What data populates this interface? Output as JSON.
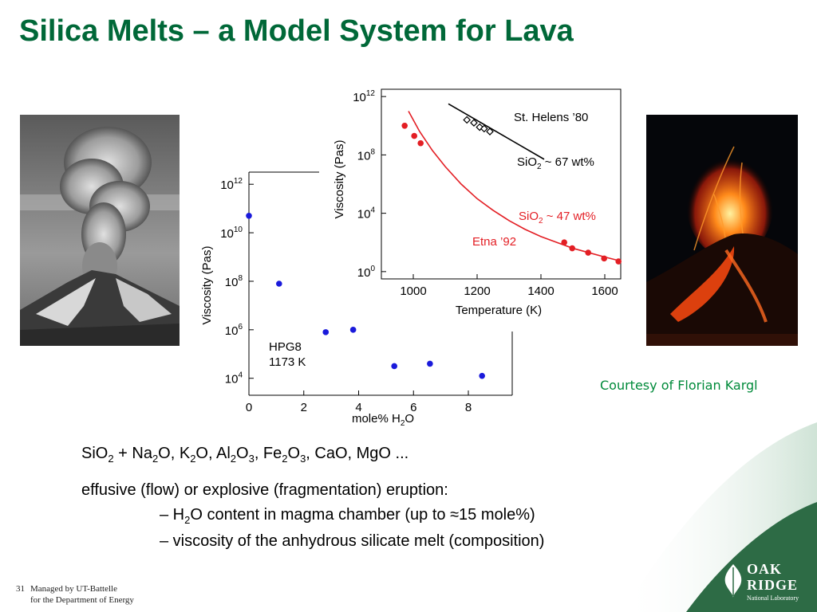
{
  "slide": {
    "title": "Silica Melts – a Model System for Lava",
    "courtesy": "Courtesy of Florian Kargl",
    "line1": {
      "a": "SiO",
      "a_sub": "2",
      "b": " + Na",
      "b_sub": "2",
      "c": "O, K",
      "c_sub": "2",
      "d": "O, Al",
      "d_sub": "2",
      "e": "O",
      "e_sub": "3",
      "f": ", Fe",
      "f_sub": "2",
      "g": "O",
      "g_sub": "3",
      "h": ", CaO, MgO ..."
    },
    "line2": "effusive (flow) or explosive (fragmentation) eruption:",
    "line3": {
      "a": "– H",
      "a_sub": "2",
      "b": "O content in magma chamber (up to ≈15 mole%)"
    },
    "line4": "– viscosity of the anhydrous silicate melt (composition)",
    "footer_number": "31",
    "footer_line1": "Managed by UT-Battelle",
    "footer_line2": "for the Department of Energy",
    "logo_line1": "OAK",
    "logo_line2": "RIDGE",
    "logo_line3": "National Laboratory"
  },
  "colors": {
    "title": "#006838",
    "courtesy": "#008a3a",
    "series_red": "#e31e24",
    "series_blue": "#1a1adb"
  },
  "chart_data": [
    {
      "type": "scatter",
      "xlabel": "mole% H₂O",
      "ylabel": "Viscosity  (Pas)",
      "xlim": [
        0,
        9.6
      ],
      "ylog": true,
      "ylim_exp": [
        3.3,
        12.5
      ],
      "x_ticks": [
        "0",
        "2",
        "4",
        "6",
        "8"
      ],
      "y_ticks": [
        {
          "base": "10",
          "exp": "12"
        },
        {
          "base": "10",
          "exp": "10"
        },
        {
          "base": "10",
          "exp": "8"
        },
        {
          "base": "10",
          "exp": "6"
        },
        {
          "base": "10",
          "exp": "4"
        }
      ],
      "annotation_line1": "HPG8",
      "annotation_line2": "1173 K",
      "series": [
        {
          "color": "#1a1adb",
          "x": [
            0,
            1.1,
            2.8,
            3.8,
            5.3,
            6.6,
            8.5
          ],
          "log10_y": [
            10.7,
            7.9,
            5.9,
            6.0,
            4.5,
            4.6,
            4.1
          ]
        }
      ]
    },
    {
      "type": "line",
      "xlabel": "Temperature  (K)",
      "ylabel": "Viscosity  (Pas)",
      "xlim": [
        900,
        1650
      ],
      "ylog": true,
      "ylim_exp": [
        -0.5,
        12.5
      ],
      "x_ticks": [
        "1000",
        "1200",
        "1400",
        "1600"
      ],
      "y_ticks": [
        {
          "base": "10",
          "exp": "12"
        },
        {
          "base": "10",
          "exp": "8"
        },
        {
          "base": "10",
          "exp": "4"
        },
        {
          "base": "10",
          "exp": "0"
        }
      ],
      "labels": {
        "sth": "St. Helens ’80",
        "sio2_67_a": "SiO",
        "sio2_67_sub": "2",
        "sio2_67_b": " ~ 67 wt%",
        "sio2_47_a": "SiO",
        "sio2_47_sub": "2",
        "sio2_47_b": " ~ 47 wt%",
        "etna": "Etna ’92"
      },
      "series": [
        {
          "name": "St. Helens ’80",
          "color": "#000000",
          "marker": "open-diamond",
          "x": [
            1168,
            1190,
            1208,
            1222,
            1240
          ],
          "log10_y": [
            10.4,
            10.2,
            9.9,
            9.8,
            9.6
          ],
          "fit_x": [
            1110,
            1410
          ],
          "fit_log10_y": [
            11.5,
            7.7
          ]
        },
        {
          "name": "Etna ’92",
          "color": "#e31e24",
          "marker": "filled-circle",
          "x": [
            973,
            1003,
            1023,
            1473,
            1498,
            1548,
            1598,
            1643
          ],
          "log10_y": [
            10.0,
            9.3,
            8.8,
            2.0,
            1.6,
            1.3,
            0.9,
            0.7
          ],
          "fit_x": [
            985,
            1020,
            1060,
            1100,
            1150,
            1200,
            1250,
            1300,
            1350,
            1400,
            1450,
            1500,
            1550,
            1600,
            1645
          ],
          "fit_log10_y": [
            11.0,
            9.6,
            8.3,
            7.2,
            6.0,
            5.0,
            4.2,
            3.5,
            2.9,
            2.4,
            2.0,
            1.6,
            1.3,
            1.0,
            0.75
          ]
        }
      ]
    }
  ]
}
